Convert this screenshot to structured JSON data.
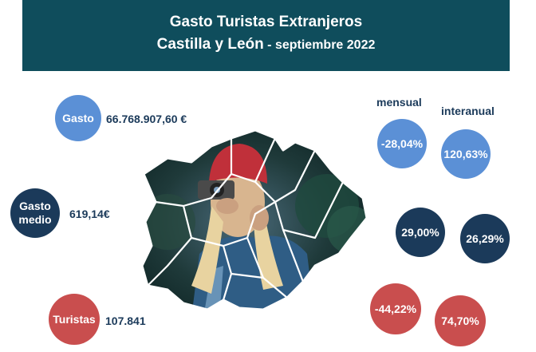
{
  "header": {
    "line1": "Gasto Turistas Extranjeros",
    "region": "Castilla y León",
    "separator": " - ",
    "period": "septiembre 2022"
  },
  "columns": {
    "monthly": "mensual",
    "yearly": "interanual"
  },
  "metrics": [
    {
      "label": "Gasto",
      "value": "66.768.907,60 €",
      "monthly": "-28,04%",
      "yearly": "120,63%",
      "color": "#5b90d6"
    },
    {
      "label": "Gasto medio",
      "value": "619,14€",
      "monthly": "29,00%",
      "yearly": "26,29%",
      "color": "#1b3a5a"
    },
    {
      "label": "Turistas",
      "value": "107.841",
      "monthly": "-44,22%",
      "yearly": "74,70%",
      "color": "#c94e4e"
    }
  ],
  "colors": {
    "banner": "#0f4d5c",
    "text": "#1b3a5a"
  }
}
